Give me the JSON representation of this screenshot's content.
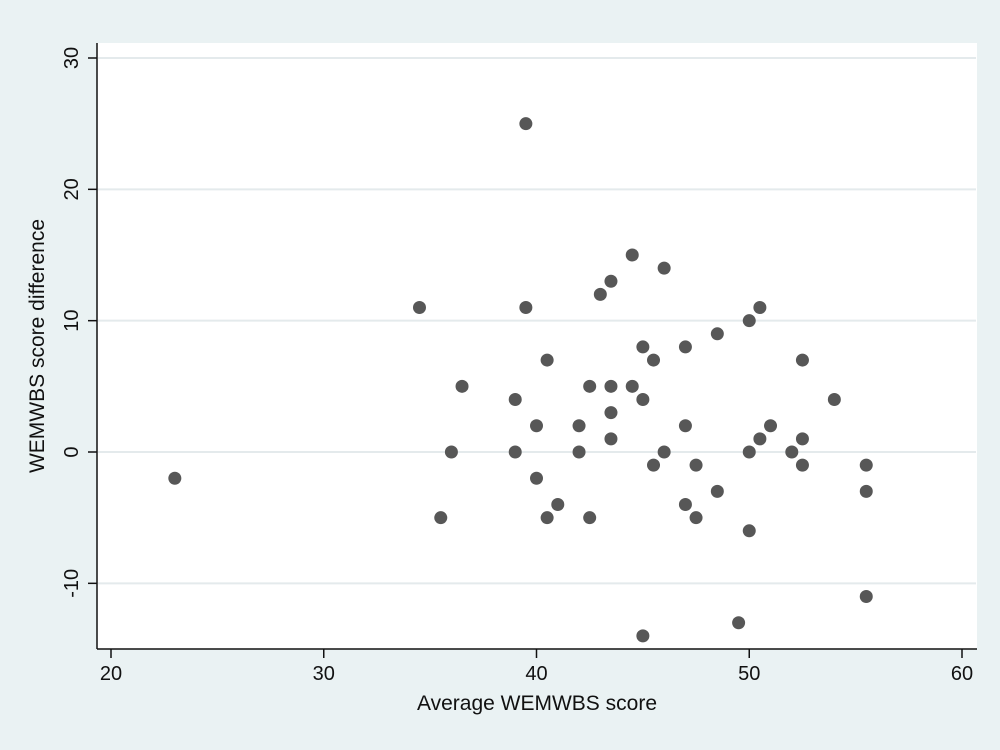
{
  "chart_data": {
    "type": "scatter",
    "title": "",
    "xlabel": "Average WEMWBS score",
    "ylabel": "WEMWBS score difference",
    "xlim": [
      20,
      60
    ],
    "ylim": [
      -15,
      30
    ],
    "x_ticks": [
      20,
      30,
      40,
      50,
      60
    ],
    "y_ticks": [
      -10,
      0,
      10,
      20,
      30
    ],
    "grid": true,
    "colors": {
      "background": "#eaf2f3",
      "plot_area": "#ffffff",
      "points": "#575757",
      "grid": "#e4eaec"
    },
    "points": [
      {
        "x": 23,
        "y": -2
      },
      {
        "x": 34.5,
        "y": 11
      },
      {
        "x": 35.5,
        "y": -5
      },
      {
        "x": 36,
        "y": 0
      },
      {
        "x": 36.5,
        "y": 5
      },
      {
        "x": 39,
        "y": 4
      },
      {
        "x": 39,
        "y": 0
      },
      {
        "x": 39.5,
        "y": 25
      },
      {
        "x": 39.5,
        "y": 11
      },
      {
        "x": 40,
        "y": 2
      },
      {
        "x": 40,
        "y": -2
      },
      {
        "x": 40.5,
        "y": 7
      },
      {
        "x": 40.5,
        "y": -5
      },
      {
        "x": 41,
        "y": -4
      },
      {
        "x": 42,
        "y": 2
      },
      {
        "x": 42,
        "y": 0
      },
      {
        "x": 42.5,
        "y": 5
      },
      {
        "x": 42.5,
        "y": -5
      },
      {
        "x": 43,
        "y": 12
      },
      {
        "x": 43.5,
        "y": 13
      },
      {
        "x": 43.5,
        "y": 5
      },
      {
        "x": 43.5,
        "y": 3
      },
      {
        "x": 43.5,
        "y": 1
      },
      {
        "x": 44.5,
        "y": 15
      },
      {
        "x": 44.5,
        "y": 5
      },
      {
        "x": 45,
        "y": 8
      },
      {
        "x": 45,
        "y": 4
      },
      {
        "x": 45,
        "y": -14
      },
      {
        "x": 45.5,
        "y": 7
      },
      {
        "x": 45.5,
        "y": -1
      },
      {
        "x": 46,
        "y": 14
      },
      {
        "x": 46,
        "y": 0
      },
      {
        "x": 47,
        "y": 8
      },
      {
        "x": 47,
        "y": 2
      },
      {
        "x": 47,
        "y": -4
      },
      {
        "x": 47.5,
        "y": -1
      },
      {
        "x": 47.5,
        "y": -5
      },
      {
        "x": 48.5,
        "y": 9
      },
      {
        "x": 48.5,
        "y": -3
      },
      {
        "x": 49.5,
        "y": -13
      },
      {
        "x": 50,
        "y": 10
      },
      {
        "x": 50,
        "y": 0
      },
      {
        "x": 50,
        "y": -6
      },
      {
        "x": 50.5,
        "y": 11
      },
      {
        "x": 50.5,
        "y": 1
      },
      {
        "x": 51,
        "y": 2
      },
      {
        "x": 52,
        "y": 0
      },
      {
        "x": 52.5,
        "y": 7
      },
      {
        "x": 52.5,
        "y": 1
      },
      {
        "x": 52.5,
        "y": -1
      },
      {
        "x": 54,
        "y": 4
      },
      {
        "x": 55.5,
        "y": -1
      },
      {
        "x": 55.5,
        "y": -3
      },
      {
        "x": 55.5,
        "y": -11
      }
    ]
  }
}
